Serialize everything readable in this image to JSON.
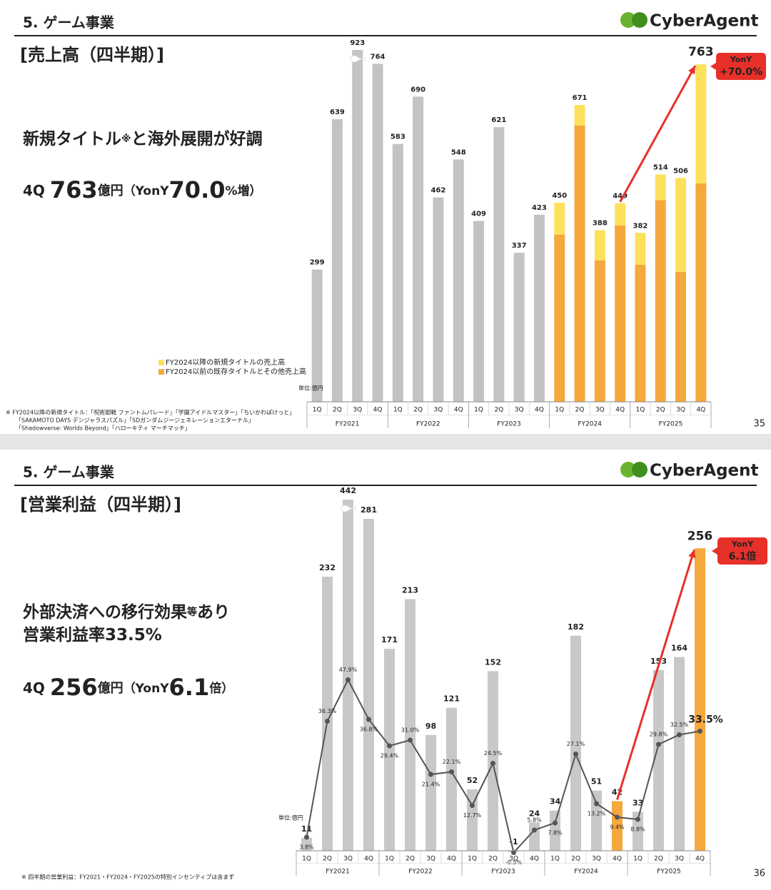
{
  "slides": [
    {
      "section": "5. ゲーム事業",
      "logo": "CyberAgent",
      "title": "[売上高（四半期）]",
      "headline": [
        [
          "新規タイトル",
          "※",
          "と海外展開が好調"
        ]
      ],
      "subline": [
        "4Q ",
        "763",
        "億円",
        "（YonY",
        "70.0",
        "%増）"
      ],
      "footnote": [
        "※ FY2024以降の新規タイトル：「呪術廻戦 ファントムパレード」「学園アイドルマスター」「ちいかわぽけっと」",
        "「SAKAMOTO DAYS デンジャラスパズル」「SDガンダムジージェネレーションエターナル」",
        "「Shadowverse: Worlds Beyond」「ハローキティ マーチマッチ」"
      ],
      "page": "35"
    },
    {
      "section": "5. ゲーム事業",
      "logo": "CyberAgent",
      "title": "[営業利益（四半期）]",
      "headline": [
        [
          "外部決済への移行効果",
          "等",
          "あり"
        ],
        [
          "営業利益率33.5%"
        ]
      ],
      "subline": [
        "4Q ",
        "256",
        "億円",
        "（YonY",
        "6.1",
        "倍）"
      ],
      "footnote": [
        "※ 四半期の営業利益：FY2021・FY2024・FY2025の特別インセンティブは含まず"
      ],
      "page": "36"
    }
  ],
  "chart_data": [
    {
      "type": "bar",
      "stacked": true,
      "categories": [
        "1Q",
        "2Q",
        "3Q",
        "4Q",
        "1Q",
        "2Q",
        "3Q",
        "4Q",
        "1Q",
        "2Q",
        "3Q",
        "4Q",
        "1Q",
        "2Q",
        "3Q",
        "4Q",
        "1Q",
        "2Q",
        "3Q",
        "4Q"
      ],
      "groups": [
        "FY2021",
        "FY2022",
        "FY2023",
        "FY2024",
        "FY2025"
      ],
      "series": [
        {
          "color": "#c3c3c3",
          "values": [
            299,
            639,
            923,
            764,
            583,
            690,
            462,
            548,
            409,
            621,
            337,
            423,
            null,
            null,
            null,
            null,
            null,
            null,
            null,
            null
          ]
        },
        {
          "name": "FY2024以前の既存タイトルとその他売上高",
          "color": "#f5a83c",
          "values": [
            null,
            null,
            null,
            null,
            null,
            null,
            null,
            null,
            null,
            null,
            null,
            null,
            378,
            625,
            320,
            399,
            310,
            456,
            294,
            494
          ]
        },
        {
          "name": "FY2024以降の新規タイトルの売上高",
          "color": "#fde15c",
          "values": [
            null,
            null,
            null,
            null,
            null,
            null,
            null,
            null,
            null,
            null,
            null,
            null,
            72,
            46,
            68,
            50,
            72,
            58,
            212,
            269
          ]
        }
      ],
      "totals": [
        299,
        639,
        923,
        764,
        583,
        690,
        462,
        548,
        409,
        621,
        337,
        423,
        450,
        671,
        388,
        449,
        382,
        514,
        506,
        763
      ],
      "ylim": [
        0,
        760
      ],
      "axis_break": true,
      "unit": "単位:億円",
      "callout": [
        "YonY",
        "+70.0%"
      ]
    },
    {
      "type": "combo",
      "categories": [
        "1Q",
        "2Q",
        "3Q",
        "4Q",
        "1Q",
        "2Q",
        "3Q",
        "4Q",
        "1Q",
        "2Q",
        "3Q",
        "4Q",
        "1Q",
        "2Q",
        "3Q",
        "4Q",
        "1Q",
        "2Q",
        "3Q",
        "4Q"
      ],
      "groups": [
        "FY2021",
        "FY2022",
        "FY2023",
        "FY2024",
        "FY2025"
      ],
      "series": [
        {
          "values": [
            11,
            232,
            442,
            281,
            171,
            213,
            98,
            121,
            52,
            152,
            -1,
            24,
            34,
            182,
            51,
            42,
            33,
            153,
            164,
            256
          ],
          "colors": [
            "#c8c8c8",
            "#c8c8c8",
            "#c8c8c8",
            "#c8c8c8",
            "#c8c8c8",
            "#c8c8c8",
            "#c8c8c8",
            "#c8c8c8",
            "#c8c8c8",
            "#c8c8c8",
            "#c8c8c8",
            "#c8c8c8",
            "#c8c8c8",
            "#c8c8c8",
            "#c8c8c8",
            "#f5a83c",
            "#c8c8c8",
            "#c8c8c8",
            "#c8c8c8",
            "#f5a83c"
          ]
        },
        {
          "axis": "y2",
          "color": "#555555",
          "values": [
            3.8,
            36.3,
            47.9,
            36.8,
            29.4,
            31.0,
            21.4,
            22.1,
            12.7,
            24.5,
            -0.5,
            5.8,
            7.8,
            27.1,
            13.2,
            9.4,
            8.8,
            29.8,
            32.5,
            33.5
          ],
          "value_labels": [
            "3.8%",
            "36.3%",
            "47.9%",
            "36.8%",
            "29.4%",
            "31.0%",
            "21.4%",
            "22.1%",
            "12.7%",
            "24.5%",
            "-0.5%",
            "5.8%",
            "7.8%",
            "27.1%",
            "13.2%",
            "9.4%",
            "8.8%",
            "29.8%",
            "32.5%",
            "33.5%"
          ]
        }
      ],
      "ylim": [
        0,
        290
      ],
      "y2lim": [
        0,
        96
      ],
      "axis_break": true,
      "unit": "単位:億円",
      "callout": [
        "YonY",
        "6.1倍"
      ]
    }
  ]
}
